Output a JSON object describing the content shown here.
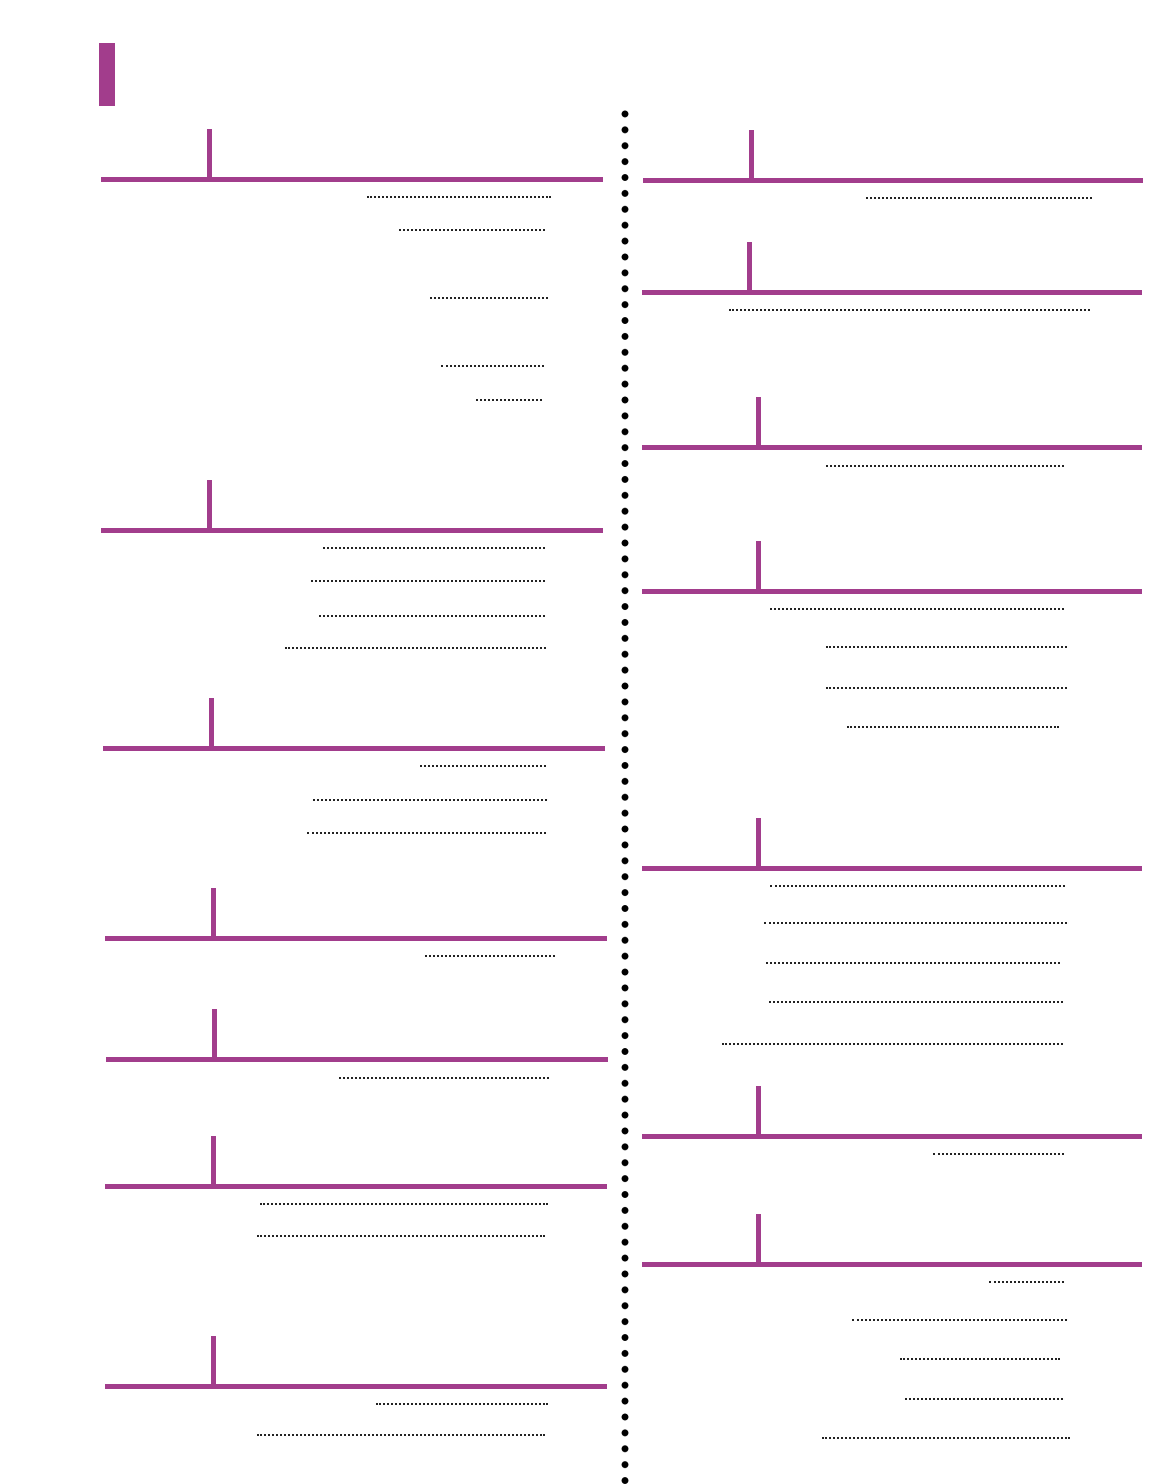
{
  "document": {
    "accent_color": "#a23d8c",
    "leader_color": "#222222",
    "divider_style": "dotted",
    "left_column": {
      "sections": [
        {
          "entries": 5
        },
        {
          "entries": 4
        },
        {
          "entries": 3
        },
        {
          "entries": 1
        },
        {
          "entries": 1
        },
        {
          "entries": 2
        },
        {
          "entries": 2
        }
      ]
    },
    "right_column": {
      "sections": [
        {
          "entries": 1
        },
        {
          "entries": 1
        },
        {
          "entries": 1
        },
        {
          "entries": 4
        },
        {
          "entries": 5
        },
        {
          "entries": 1
        },
        {
          "entries": 5
        }
      ]
    }
  }
}
